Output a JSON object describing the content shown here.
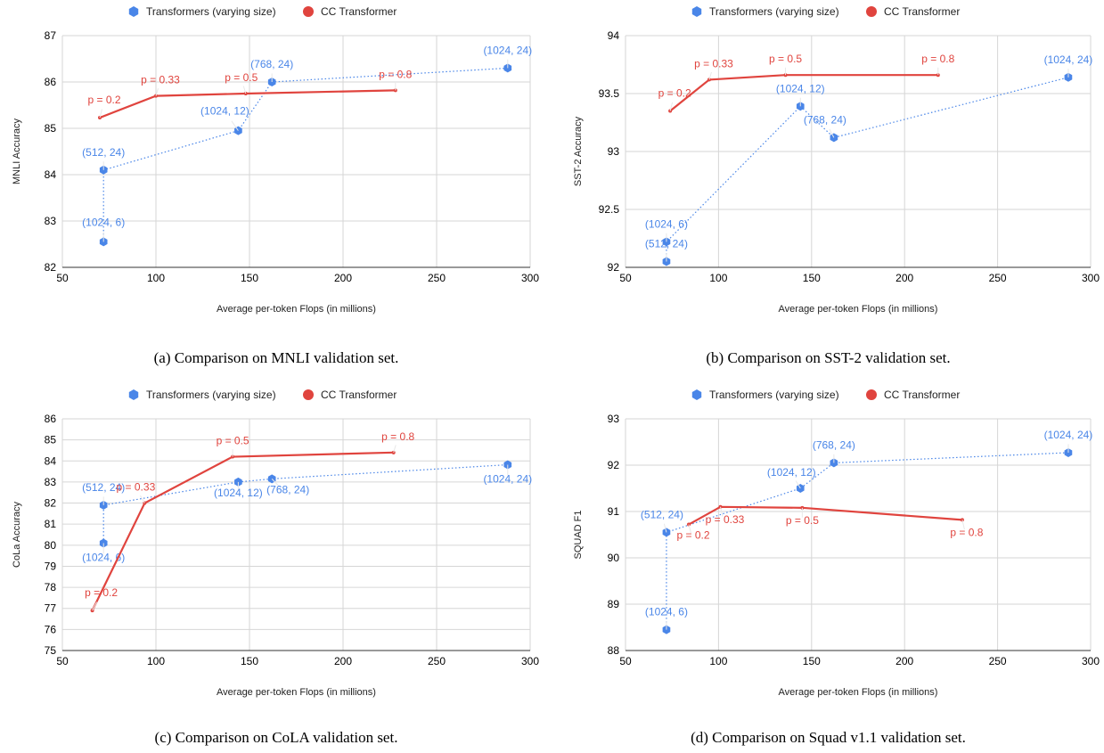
{
  "colors": {
    "transformers": "#4a86e8",
    "cc": "#e0443e",
    "grid": "#d6d6d6"
  },
  "legend": {
    "transformers": "Transformers (varying size)",
    "cc": "CC Transformer"
  },
  "chart_data": [
    {
      "type": "line",
      "caption": "(a) Comparison on MNLI validation set.",
      "xlabel": "Average per-token Flops (in millions)",
      "ylabel": "MNLI Accuracy",
      "xlim": [
        50,
        300
      ],
      "ylim": [
        82,
        87
      ],
      "xticks": [
        50,
        100,
        150,
        200,
        250,
        300
      ],
      "yticks": [
        82,
        83,
        84,
        85,
        86,
        87
      ],
      "grid": true,
      "legend_position": "top",
      "series": [
        {
          "name": "Transformers (varying size)",
          "style": "dotted-markers",
          "points": [
            {
              "x": 72,
              "y": 82.55,
              "label": "(1024, 6)"
            },
            {
              "x": 72,
              "y": 84.1,
              "label": "(512, 24)"
            },
            {
              "x": 144,
              "y": 84.95,
              "label": "(1024, 12)"
            },
            {
              "x": 162,
              "y": 86.0,
              "label": "(768, 24)"
            },
            {
              "x": 288,
              "y": 86.3,
              "label": "(1024, 24)"
            }
          ]
        },
        {
          "name": "CC Transformer",
          "style": "solid",
          "points": [
            {
              "x": 70,
              "y": 85.23,
              "label": "p = 0.2"
            },
            {
              "x": 100,
              "y": 85.7,
              "label": "p = 0.33"
            },
            {
              "x": 148,
              "y": 85.75,
              "label": "p = 0.5"
            },
            {
              "x": 228,
              "y": 85.82,
              "label": "p = 0.8"
            }
          ]
        }
      ]
    },
    {
      "type": "line",
      "caption": "(b) Comparison on SST-2 validation set.",
      "xlabel": "Average per-token Flops (in millions)",
      "ylabel": "SST-2 Accuracy",
      "xlim": [
        50,
        300
      ],
      "ylim": [
        92,
        94
      ],
      "xticks": [
        50,
        100,
        150,
        200,
        250,
        300
      ],
      "yticks": [
        92,
        92.5,
        93,
        93.5,
        94
      ],
      "grid": true,
      "legend_position": "top",
      "series": [
        {
          "name": "Transformers (varying size)",
          "style": "dotted-markers",
          "points": [
            {
              "x": 72,
              "y": 92.05,
              "label": "(512, 24)"
            },
            {
              "x": 72,
              "y": 92.22,
              "label": "(1024, 6)"
            },
            {
              "x": 144,
              "y": 93.39,
              "label": "(1024, 12)"
            },
            {
              "x": 162,
              "y": 93.12,
              "label": "(768, 24)"
            },
            {
              "x": 288,
              "y": 93.64,
              "label": "(1024, 24)"
            }
          ]
        },
        {
          "name": "CC Transformer",
          "style": "solid",
          "points": [
            {
              "x": 74,
              "y": 93.35,
              "label": "p = 0.2"
            },
            {
              "x": 95,
              "y": 93.62,
              "label": "p = 0.33"
            },
            {
              "x": 136,
              "y": 93.66,
              "label": "p = 0.5"
            },
            {
              "x": 218,
              "y": 93.66,
              "label": "p = 0.8"
            }
          ]
        }
      ]
    },
    {
      "type": "line",
      "caption": "(c) Comparison on CoLA validation set.",
      "xlabel": "Average per-token Flops (in millions)",
      "ylabel": "CoLa Accuracy",
      "xlim": [
        50,
        300
      ],
      "ylim": [
        75,
        86
      ],
      "xticks": [
        50,
        100,
        150,
        200,
        250,
        300
      ],
      "yticks": [
        75,
        76,
        77,
        78,
        79,
        80,
        81,
        82,
        83,
        84,
        85,
        86
      ],
      "grid": true,
      "legend_position": "top",
      "series": [
        {
          "name": "Transformers (varying size)",
          "style": "dotted-markers",
          "points": [
            {
              "x": 72,
              "y": 80.1,
              "label": "(1024, 6)"
            },
            {
              "x": 72,
              "y": 81.9,
              "label": "(512, 24)"
            },
            {
              "x": 144,
              "y": 83.0,
              "label": "(1024, 12)"
            },
            {
              "x": 162,
              "y": 83.15,
              "label": "(768, 24)"
            },
            {
              "x": 288,
              "y": 83.82,
              "label": "(1024, 24)"
            }
          ]
        },
        {
          "name": "CC Transformer",
          "style": "solid",
          "points": [
            {
              "x": 66,
              "y": 76.9,
              "label": "p = 0.2"
            },
            {
              "x": 94,
              "y": 82.0,
              "label": "p = 0.33"
            },
            {
              "x": 141,
              "y": 84.2,
              "label": "p = 0.5"
            },
            {
              "x": 227,
              "y": 84.4,
              "label": "p = 0.8"
            }
          ]
        }
      ]
    },
    {
      "type": "line",
      "caption": "(d) Comparison on Squad v1.1 validation set.",
      "xlabel": "Average per-token Flops (in millions)",
      "ylabel": "SQUAD F1",
      "xlim": [
        50,
        300
      ],
      "ylim": [
        88,
        93
      ],
      "xticks": [
        50,
        100,
        150,
        200,
        250,
        300
      ],
      "yticks": [
        88,
        89,
        90,
        91,
        92,
        93
      ],
      "grid": true,
      "legend_position": "top",
      "series": [
        {
          "name": "Transformers (varying size)",
          "style": "dotted-markers",
          "points": [
            {
              "x": 72,
              "y": 88.45,
              "label": "(1024, 6)"
            },
            {
              "x": 72,
              "y": 90.55,
              "label": "(512, 24)"
            },
            {
              "x": 144,
              "y": 91.5,
              "label": "(1024, 12)"
            },
            {
              "x": 162,
              "y": 92.05,
              "label": "(768, 24)"
            },
            {
              "x": 288,
              "y": 92.27,
              "label": "(1024, 24)"
            }
          ]
        },
        {
          "name": "CC Transformer",
          "style": "solid",
          "points": [
            {
              "x": 84,
              "y": 90.72,
              "label": "p = 0.2"
            },
            {
              "x": 101,
              "y": 91.1,
              "label": "p = 0.33"
            },
            {
              "x": 145,
              "y": 91.08,
              "label": "p = 0.5"
            },
            {
              "x": 231,
              "y": 90.82,
              "label": "p = 0.8"
            }
          ]
        }
      ]
    }
  ]
}
